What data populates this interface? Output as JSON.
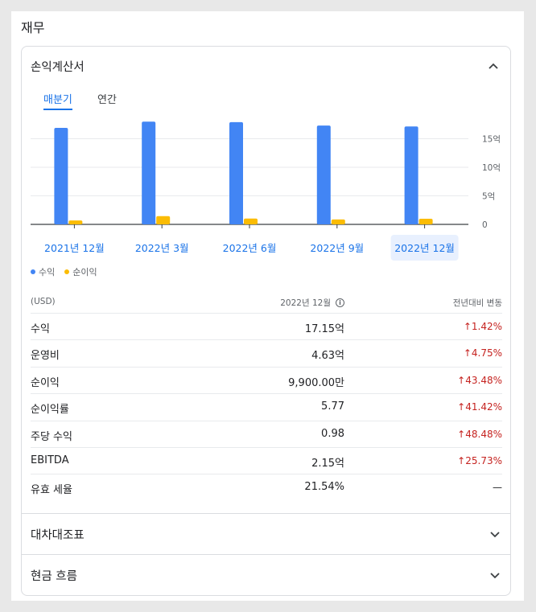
{
  "section_title": "재무",
  "income": {
    "title": "손익계산서",
    "tabs": [
      "매분기",
      "연간"
    ],
    "legend": {
      "revenue": "수익",
      "net_income": "순이익"
    },
    "columns": {
      "unit": "(USD)",
      "period": "2022년 12월",
      "change": "전년대비 변동"
    },
    "rows": [
      {
        "label": "수익",
        "value": "17.15억",
        "change": "1.42%",
        "dir": "up"
      },
      {
        "label": "운영비",
        "value": "4.63억",
        "change": "4.75%",
        "dir": "up"
      },
      {
        "label": "순이익",
        "value": "9,900.00만",
        "change": "43.48%",
        "dir": "up"
      },
      {
        "label": "순이익률",
        "value": "5.77",
        "change": "41.42%",
        "dir": "up"
      },
      {
        "label": "주당 수익",
        "value": "0.98",
        "change": "48.48%",
        "dir": "up"
      },
      {
        "label": "EBITDA",
        "value": "2.15억",
        "change": "25.73%",
        "dir": "up"
      },
      {
        "label": "유효 세율",
        "value": "21.54%",
        "change": "—",
        "dir": "none"
      }
    ]
  },
  "balance_title": "대차대조표",
  "cashflow_title": "현금 흐름",
  "colors": {
    "revenue": "#4285f4",
    "net_income": "#fbbc04",
    "accent": "#1a73e8",
    "negative": "#c5221f"
  },
  "chart_data": {
    "type": "bar",
    "categories": [
      "2021년 12월",
      "2022년 3월",
      "2022년 6월",
      "2022년 9월",
      "2022년 12월"
    ],
    "series": [
      {
        "name": "수익",
        "values": [
          16.9,
          18.0,
          17.9,
          17.3,
          17.15
        ]
      },
      {
        "name": "순이익",
        "values": [
          0.69,
          1.45,
          1.02,
          0.86,
          0.99
        ]
      }
    ],
    "y_ticks": [
      "0",
      "5억",
      "10억",
      "15억"
    ],
    "y_tick_values": [
      0,
      5,
      10,
      15
    ],
    "ylim": [
      0,
      20
    ],
    "selected_category": "2022년 12월",
    "grid": true,
    "legend_position": "bottom-left"
  }
}
